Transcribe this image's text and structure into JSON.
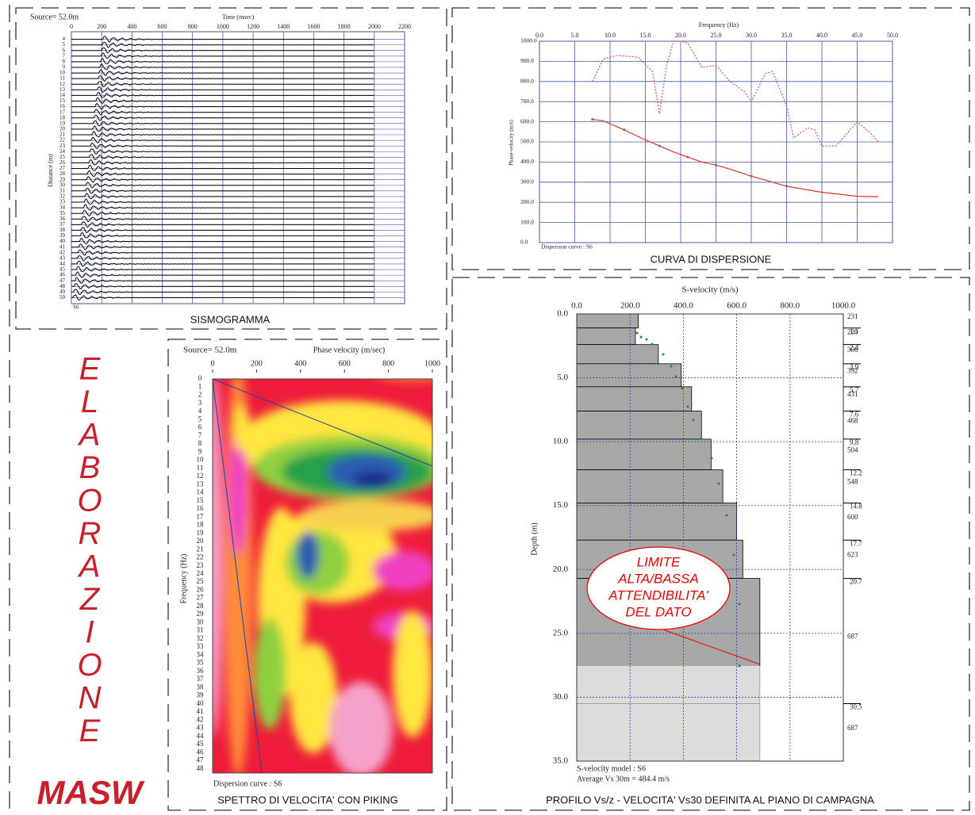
{
  "side": {
    "letters": [
      "E",
      "L",
      "A",
      "B",
      "O",
      "R",
      "A",
      "Z",
      "I",
      "O",
      "N",
      "E"
    ],
    "subtitle": "MASW"
  },
  "seismogram": {
    "source": "Source= 52.0m",
    "x_label": "Time (msec)",
    "xlim": [
      0,
      2200
    ],
    "xticks": [
      0,
      200,
      400,
      600,
      800,
      1000,
      1200,
      1400,
      1600,
      1800,
      2000,
      2200
    ],
    "y_label": "Distance (m)",
    "traces": [
      4,
      5,
      6,
      7,
      8,
      9,
      10,
      11,
      12,
      13,
      14,
      15,
      16,
      17,
      18,
      19,
      20,
      21,
      22,
      23,
      24,
      25,
      26,
      27,
      28,
      29,
      30,
      31,
      32,
      33,
      34,
      35,
      36,
      37,
      38,
      39,
      40,
      41,
      42,
      43,
      44,
      45,
      46,
      47,
      48,
      49,
      50
    ],
    "shot": "S6",
    "caption": "SISMOGRAMMA"
  },
  "dispersion": {
    "x_label": "Frequency (Hz)",
    "xlim": [
      0,
      50
    ],
    "xticks": [
      {
        "value": 0,
        "label": "0.0"
      },
      {
        "value": 5,
        "label": "5.0"
      },
      {
        "value": 10,
        "label": "10.0"
      },
      {
        "value": 15,
        "label": "15.0"
      },
      {
        "value": 20,
        "label": "20.0"
      },
      {
        "value": 25,
        "label": "25.0"
      },
      {
        "value": 30,
        "label": "30.0"
      },
      {
        "value": 35,
        "label": "35.0"
      },
      {
        "value": 40,
        "label": "40.0"
      },
      {
        "value": 45,
        "label": "45.0"
      },
      {
        "value": 50,
        "label": "50.0"
      }
    ],
    "y_label": "Phase-velocity (m/s)",
    "ylim": [
      0,
      1000
    ],
    "yticks": [
      {
        "value": 0,
        "label": "0.0"
      },
      {
        "value": 100,
        "label": "100.0"
      },
      {
        "value": 200,
        "label": "200.0"
      },
      {
        "value": 300,
        "label": "300.0"
      },
      {
        "value": 400,
        "label": "400.0"
      },
      {
        "value": 500,
        "label": "500.0"
      },
      {
        "value": 600,
        "label": "600.0"
      },
      {
        "value": 700,
        "label": "700.0"
      },
      {
        "value": 800,
        "label": "800.0"
      },
      {
        "value": 900,
        "label": "900.0"
      },
      {
        "value": 1000,
        "label": "1000.0"
      }
    ],
    "curve": {
      "color": "#e03030",
      "x": [
        7.5,
        9,
        12,
        15,
        17,
        19,
        21,
        23,
        25,
        27,
        30,
        33,
        35,
        38,
        40,
        43,
        45,
        48
      ],
      "y": [
        612,
        605,
        560,
        510,
        480,
        450,
        425,
        400,
        385,
        365,
        330,
        300,
        280,
        262,
        250,
        238,
        230,
        228
      ]
    },
    "upper": {
      "color": "#e05060",
      "x": [
        7.5,
        9,
        11,
        14,
        16,
        17,
        18,
        19,
        20,
        21,
        23,
        25,
        27,
        29,
        30,
        32,
        33,
        35,
        36,
        38,
        39,
        40,
        42,
        44,
        45,
        47,
        48
      ],
      "y": [
        800,
        910,
        930,
        920,
        850,
        640,
        880,
        1000,
        1000,
        990,
        870,
        880,
        800,
        750,
        700,
        840,
        850,
        680,
        520,
        570,
        560,
        480,
        480,
        560,
        600,
        540,
        500
      ]
    },
    "note": "Dispersion curve : S6",
    "caption": "CURVA DI DISPERSIONE"
  },
  "spectrum": {
    "source": "Source= 52.0m",
    "x_label": "Phase velocity (m/sec)",
    "xlim": [
      0,
      1000
    ],
    "xticks": [
      0,
      200,
      400,
      600,
      800,
      1000
    ],
    "y_label": "Frequency (Hz)",
    "rows": [
      0,
      1,
      2,
      3,
      4,
      5,
      6,
      7,
      8,
      9,
      10,
      11,
      12,
      13,
      14,
      15,
      16,
      17,
      18,
      19,
      20,
      21,
      22,
      23,
      24,
      25,
      26,
      27,
      28,
      29,
      30,
      31,
      32,
      33,
      34,
      35,
      36,
      37,
      38,
      39,
      40,
      41,
      42,
      43,
      44,
      45,
      46,
      47,
      48
    ],
    "note": "Dispersion curve : S6",
    "caption": "SPETTRO DI VELOCITA' CON PIKING"
  },
  "profile": {
    "x_label": "S-velocity (m/s)",
    "xlim": [
      0,
      1000
    ],
    "xticks": [
      {
        "value": 0,
        "label": "0.0"
      },
      {
        "value": 200,
        "label": "200.0"
      },
      {
        "value": 400,
        "label": "400.0"
      },
      {
        "value": 600,
        "label": "600.0"
      },
      {
        "value": 800,
        "label": "800.0"
      },
      {
        "value": 1000,
        "label": "1000.0"
      }
    ],
    "y_label": "Depth (m)",
    "ylim": [
      0,
      35
    ],
    "yticks": [
      {
        "value": 0,
        "label": "0.0"
      },
      {
        "value": 5,
        "label": "5.0"
      },
      {
        "value": 10,
        "label": "10.0"
      },
      {
        "value": 15,
        "label": "15.0"
      },
      {
        "value": 20,
        "label": "20.0"
      },
      {
        "value": 25,
        "label": "25.0"
      },
      {
        "value": 30,
        "label": "30.0"
      },
      {
        "value": 35,
        "label": "35.0"
      }
    ],
    "velocities": [
      231,
      220,
      306,
      392,
      431,
      468,
      504,
      548,
      600,
      623,
      687,
      687
    ],
    "depths": [
      1.1,
      2.4,
      3.9,
      5.7,
      7.6,
      9.8,
      12.2,
      14.8,
      17.7,
      20.7,
      30.5
    ],
    "model": "S-velocity model : S6",
    "average": "Average Vs 30m = 484.4 m/s",
    "annotation": [
      "LIMITE",
      "ALTA/BASSA",
      "ATTENDIBILITA'",
      "DEL DATO"
    ],
    "caption": "PROFILO Vs/z - VELOCITA' Vs30 DEFINITA AL PIANO DI CAMPAGNA"
  }
}
